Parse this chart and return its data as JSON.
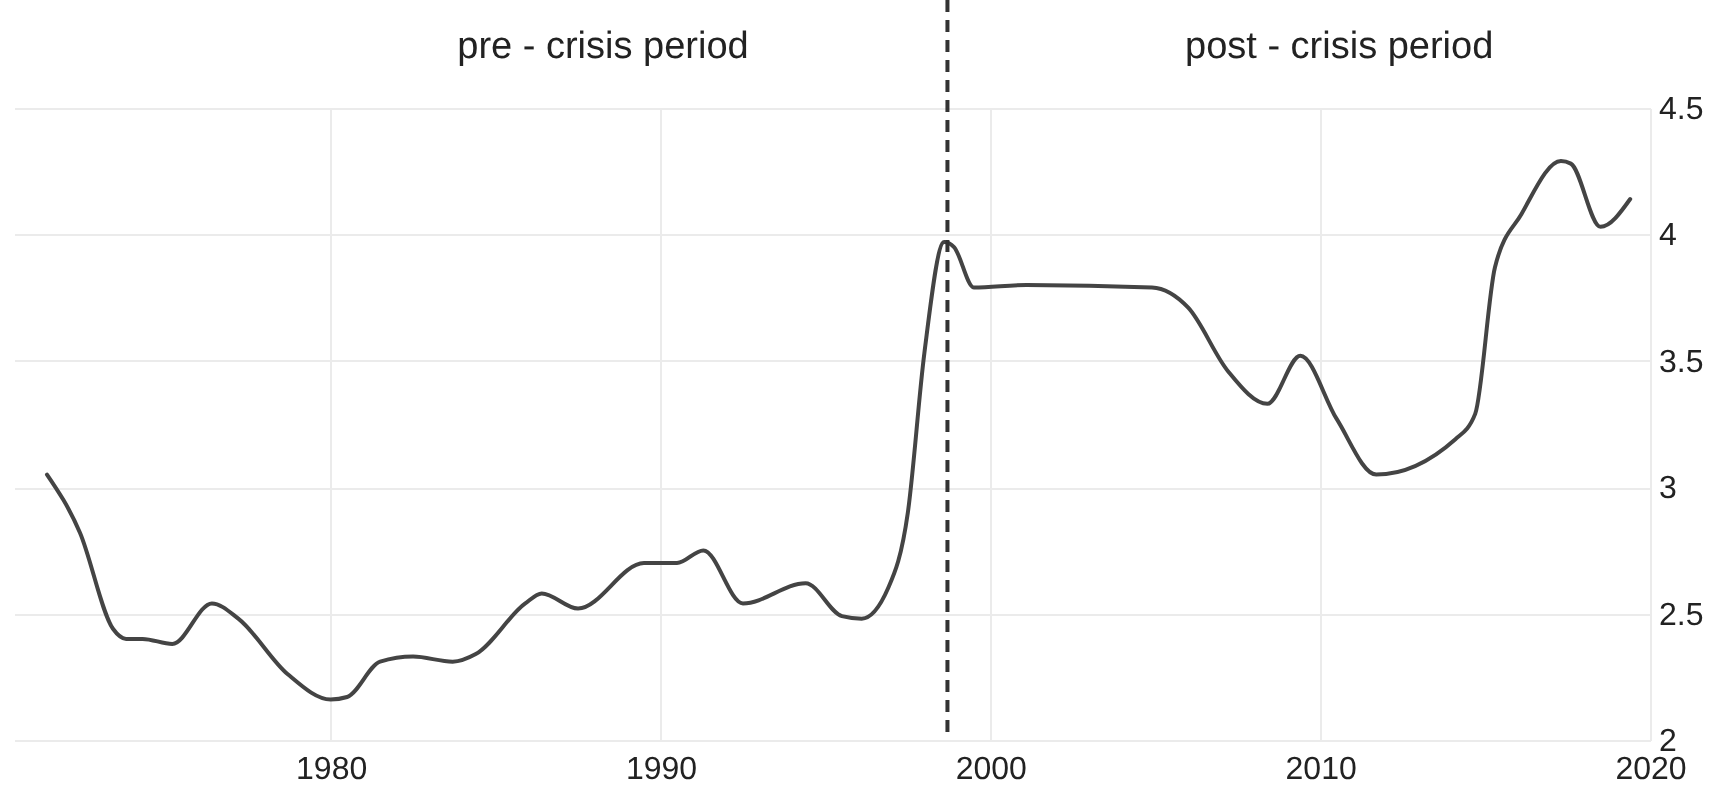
{
  "chart_data": {
    "type": "line",
    "x": [
      1971.4,
      1972.4,
      1973.4,
      1973.8,
      1974.3,
      1975.2,
      1976.4,
      1977.2,
      1978.7,
      1980,
      1980.5,
      1981.5,
      1982.5,
      1983.7,
      1984.4,
      1985.9,
      1986.4,
      1987.5,
      1989.5,
      1990.5,
      1991.3,
      1992.5,
      1994.4,
      1995.5,
      1996.1,
      1996.9,
      1997.5,
      1998,
      1998.6,
      1998.9,
      1999.5,
      2001.1,
      2004.9,
      2006,
      2007.2,
      2008.4,
      2009.4,
      2010.5,
      2011.7,
      2014.1,
      2014.7,
      2015.3,
      2016.1,
      2017.3,
      2017.6,
      2018.5,
      2019.4
    ],
    "series": [
      {
        "color": "#444444",
        "values": [
          3.05,
          2.82,
          2.44,
          2.4,
          2.4,
          2.38,
          2.54,
          2.48,
          2.26,
          2.16,
          2.17,
          2.31,
          2.33,
          2.31,
          2.34,
          2.54,
          2.58,
          2.52,
          2.7,
          2.7,
          2.75,
          2.54,
          2.62,
          2.49,
          2.48,
          2.6,
          2.9,
          3.53,
          3.97,
          3.95,
          3.79,
          3.8,
          3.79,
          3.71,
          3.46,
          3.33,
          3.52,
          3.27,
          3.05,
          3.19,
          3.29,
          3.87,
          4.08,
          4.29,
          4.28,
          4.03,
          4.14
        ]
      }
    ],
    "xlim": [
      1970.4,
      2020
    ],
    "xticks": [
      1980,
      1990,
      2000,
      2010,
      2020
    ],
    "ylim": [
      2,
      4.5
    ],
    "yticks": [
      2,
      2.5,
      3,
      3.5,
      4,
      4.5
    ],
    "grid": true,
    "line_style": "solid",
    "ref_lines": [
      {
        "axis": "x",
        "value": 1998.7,
        "line_style": "dashed",
        "color": "#333333"
      }
    ],
    "annotations": [
      "pre - crisis period",
      "post - crisis period"
    ]
  }
}
